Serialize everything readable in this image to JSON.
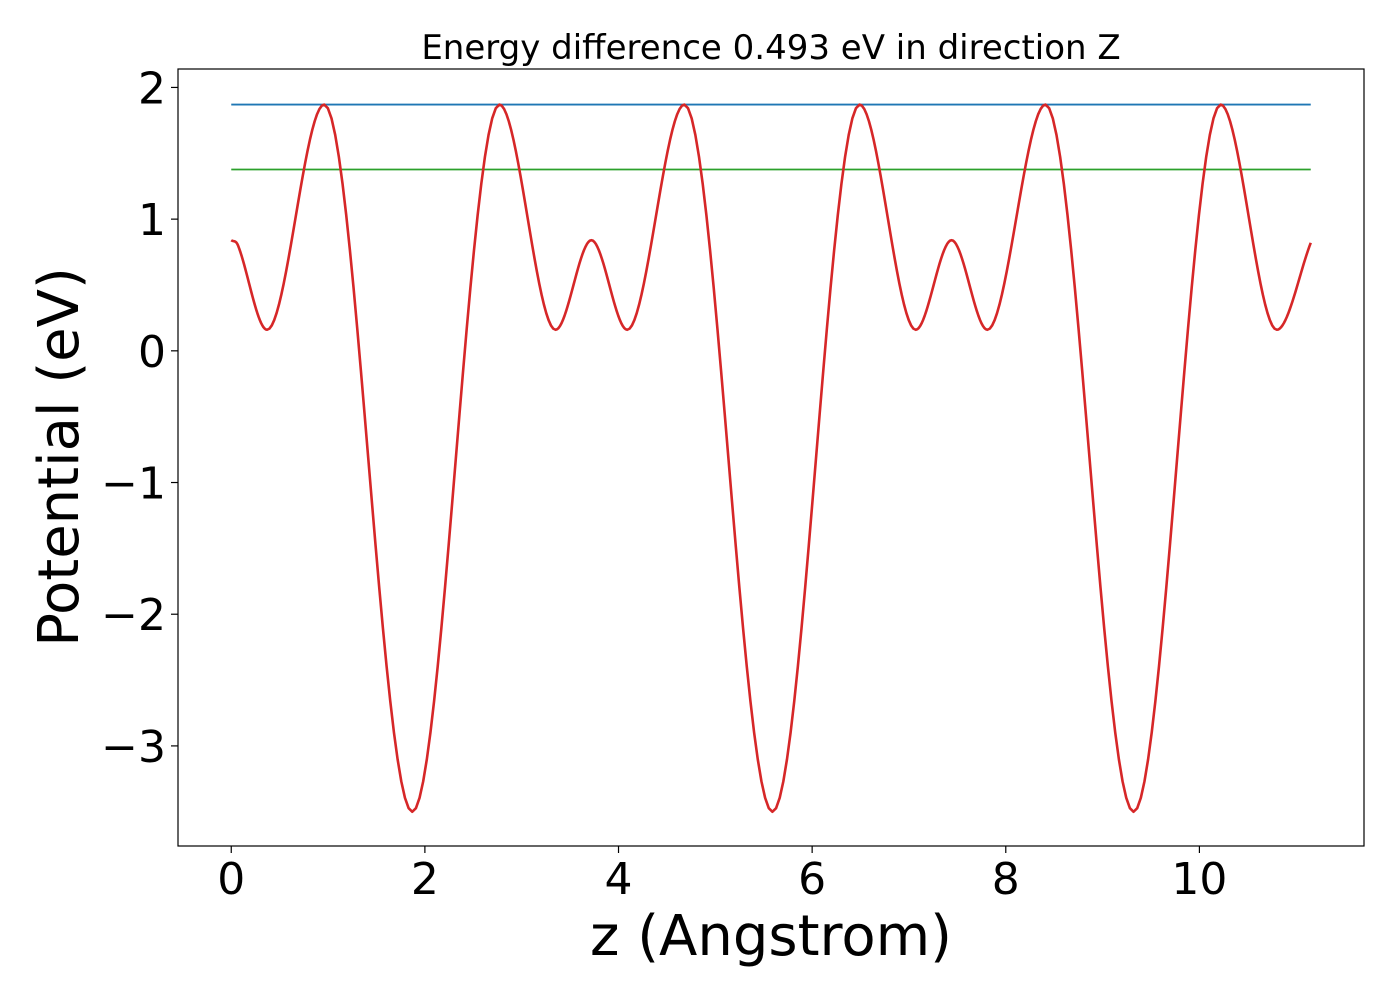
{
  "chart_data": {
    "type": "line",
    "title": "Energy difference 0.493 eV in direction Z",
    "xlabel": "z (Angstrom)",
    "ylabel": "Potential (eV)",
    "xlim": [
      -0.55,
      11.7
    ],
    "ylim": [
      -3.76,
      2.14
    ],
    "xticks": [
      0,
      2,
      4,
      6,
      8,
      10
    ],
    "xtick_labels": [
      "0",
      "2",
      "4",
      "6",
      "8",
      "10"
    ],
    "yticks": [
      -3,
      -2,
      -1,
      0,
      1,
      2
    ],
    "ytick_labels": [
      "−3",
      "−2",
      "−1",
      "0",
      "1",
      "2"
    ],
    "grid": false,
    "series": [
      {
        "color": "#1f77b4",
        "style": "hline",
        "x": [
          0,
          11.15
        ],
        "y": [
          1.87,
          1.87
        ]
      },
      {
        "color": "#2ca02c",
        "style": "hline",
        "x": [
          0,
          11.15
        ],
        "y": [
          1.377,
          1.377
        ]
      },
      {
        "color": "#d62728",
        "style": "smooth",
        "x": [
          0,
          0.07,
          0.37,
          0.96,
          1.87,
          2.77,
          3.35,
          3.72,
          4.09,
          4.68,
          5.59,
          6.49,
          7.07,
          7.44,
          7.81,
          8.41,
          9.32,
          10.22,
          10.8,
          11.15
        ],
        "y": [
          0.84,
          0.8,
          0.16,
          1.87,
          -3.5,
          1.87,
          0.16,
          0.84,
          0.16,
          1.87,
          -3.5,
          1.87,
          0.16,
          0.84,
          0.16,
          1.87,
          -3.5,
          1.87,
          0.16,
          0.82
        ]
      }
    ]
  }
}
